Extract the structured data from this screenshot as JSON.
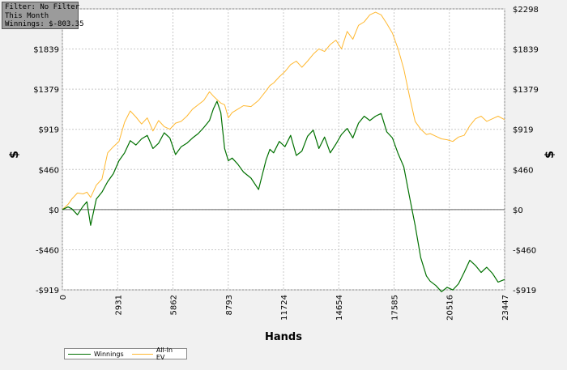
{
  "filter": {
    "line1": "Filter: No Filter",
    "line2": "This Month",
    "line3": "Winnings: $-803.35"
  },
  "chart_data": {
    "type": "line",
    "xlabel": "Hands",
    "ylabel": "$",
    "xlim": [
      0,
      23447
    ],
    "ylim": [
      -919,
      2298
    ],
    "x_ticks": [
      0,
      2931,
      5862,
      8793,
      11724,
      14654,
      17585,
      20516,
      23447
    ],
    "y_ticks": [
      -919,
      -460,
      0,
      460,
      919,
      1379,
      1839,
      2298
    ],
    "y_tick_labels": [
      "-$919",
      "-$460",
      "$0",
      "$460",
      "$919",
      "$1379",
      "$1839",
      "$2298"
    ],
    "grid": true,
    "legend_position": "bottom-left",
    "series": [
      {
        "name": "Winnings",
        "color": "#007000",
        "x": [
          0,
          300,
          500,
          800,
          1100,
          1300,
          1500,
          1800,
          2100,
          2400,
          2700,
          3000,
          3300,
          3600,
          3900,
          4200,
          4500,
          4800,
          5100,
          5400,
          5700,
          6000,
          6300,
          6600,
          6900,
          7200,
          7500,
          7800,
          8000,
          8200,
          8400,
          8600,
          8800,
          9000,
          9300,
          9600,
          10000,
          10400,
          10800,
          11000,
          11200,
          11500,
          11800,
          12100,
          12400,
          12700,
          13000,
          13300,
          13600,
          13900,
          14200,
          14500,
          14800,
          15100,
          15400,
          15700,
          16000,
          16300,
          16600,
          16900,
          17200,
          17500,
          17800,
          18100,
          18400,
          18700,
          19000,
          19300,
          19500,
          19800,
          20100,
          20400,
          20700,
          21000,
          21300,
          21600,
          21900,
          22200,
          22500,
          22800,
          23100,
          23447
        ],
        "y": [
          0,
          30,
          10,
          -60,
          40,
          90,
          -180,
          120,
          200,
          320,
          410,
          560,
          650,
          790,
          740,
          810,
          850,
          700,
          760,
          880,
          820,
          630,
          720,
          760,
          820,
          870,
          940,
          1020,
          1150,
          1240,
          1110,
          700,
          560,
          590,
          520,
          430,
          360,
          230,
          570,
          690,
          650,
          780,
          720,
          850,
          620,
          670,
          840,
          910,
          700,
          830,
          650,
          750,
          860,
          930,
          820,
          990,
          1070,
          1020,
          1070,
          1100,
          890,
          820,
          640,
          490,
          150,
          -180,
          -550,
          -760,
          -820,
          -870,
          -940,
          -890,
          -920,
          -850,
          -720,
          -580,
          -640,
          -720,
          -660,
          -730,
          -830,
          -800
        ],
        "final_value": -803.35
      },
      {
        "name": "All-In EV",
        "color": "#ffb830",
        "x": [
          0,
          300,
          500,
          800,
          1100,
          1300,
          1500,
          1800,
          2100,
          2400,
          2700,
          3000,
          3300,
          3600,
          3900,
          4200,
          4500,
          4800,
          5100,
          5400,
          5700,
          6000,
          6300,
          6600,
          6900,
          7200,
          7500,
          7800,
          8000,
          8200,
          8400,
          8600,
          8800,
          9000,
          9300,
          9600,
          10000,
          10400,
          10800,
          11000,
          11200,
          11500,
          11800,
          12100,
          12400,
          12700,
          13000,
          13300,
          13600,
          13900,
          14200,
          14500,
          14800,
          15100,
          15400,
          15700,
          16000,
          16300,
          16600,
          16900,
          17200,
          17500,
          17800,
          18100,
          18400,
          18700,
          19000,
          19300,
          19500,
          19800,
          20100,
          20400,
          20700,
          21000,
          21300,
          21600,
          21900,
          22200,
          22500,
          22800,
          23100,
          23447
        ],
        "y": [
          0,
          60,
          120,
          190,
          180,
          200,
          140,
          280,
          350,
          650,
          720,
          780,
          1000,
          1130,
          1060,
          980,
          1050,
          900,
          1020,
          950,
          920,
          990,
          1010,
          1070,
          1150,
          1200,
          1250,
          1350,
          1300,
          1260,
          1220,
          1200,
          1050,
          1110,
          1150,
          1190,
          1180,
          1250,
          1360,
          1420,
          1450,
          1520,
          1580,
          1660,
          1700,
          1630,
          1700,
          1780,
          1840,
          1810,
          1890,
          1940,
          1840,
          2040,
          1950,
          2110,
          2150,
          2230,
          2260,
          2230,
          2130,
          2020,
          1840,
          1610,
          1300,
          1010,
          920,
          860,
          870,
          840,
          810,
          800,
          780,
          830,
          850,
          960,
          1040,
          1070,
          1010,
          1040,
          1070,
          1030
        ],
        "final_value": 1030
      }
    ]
  }
}
